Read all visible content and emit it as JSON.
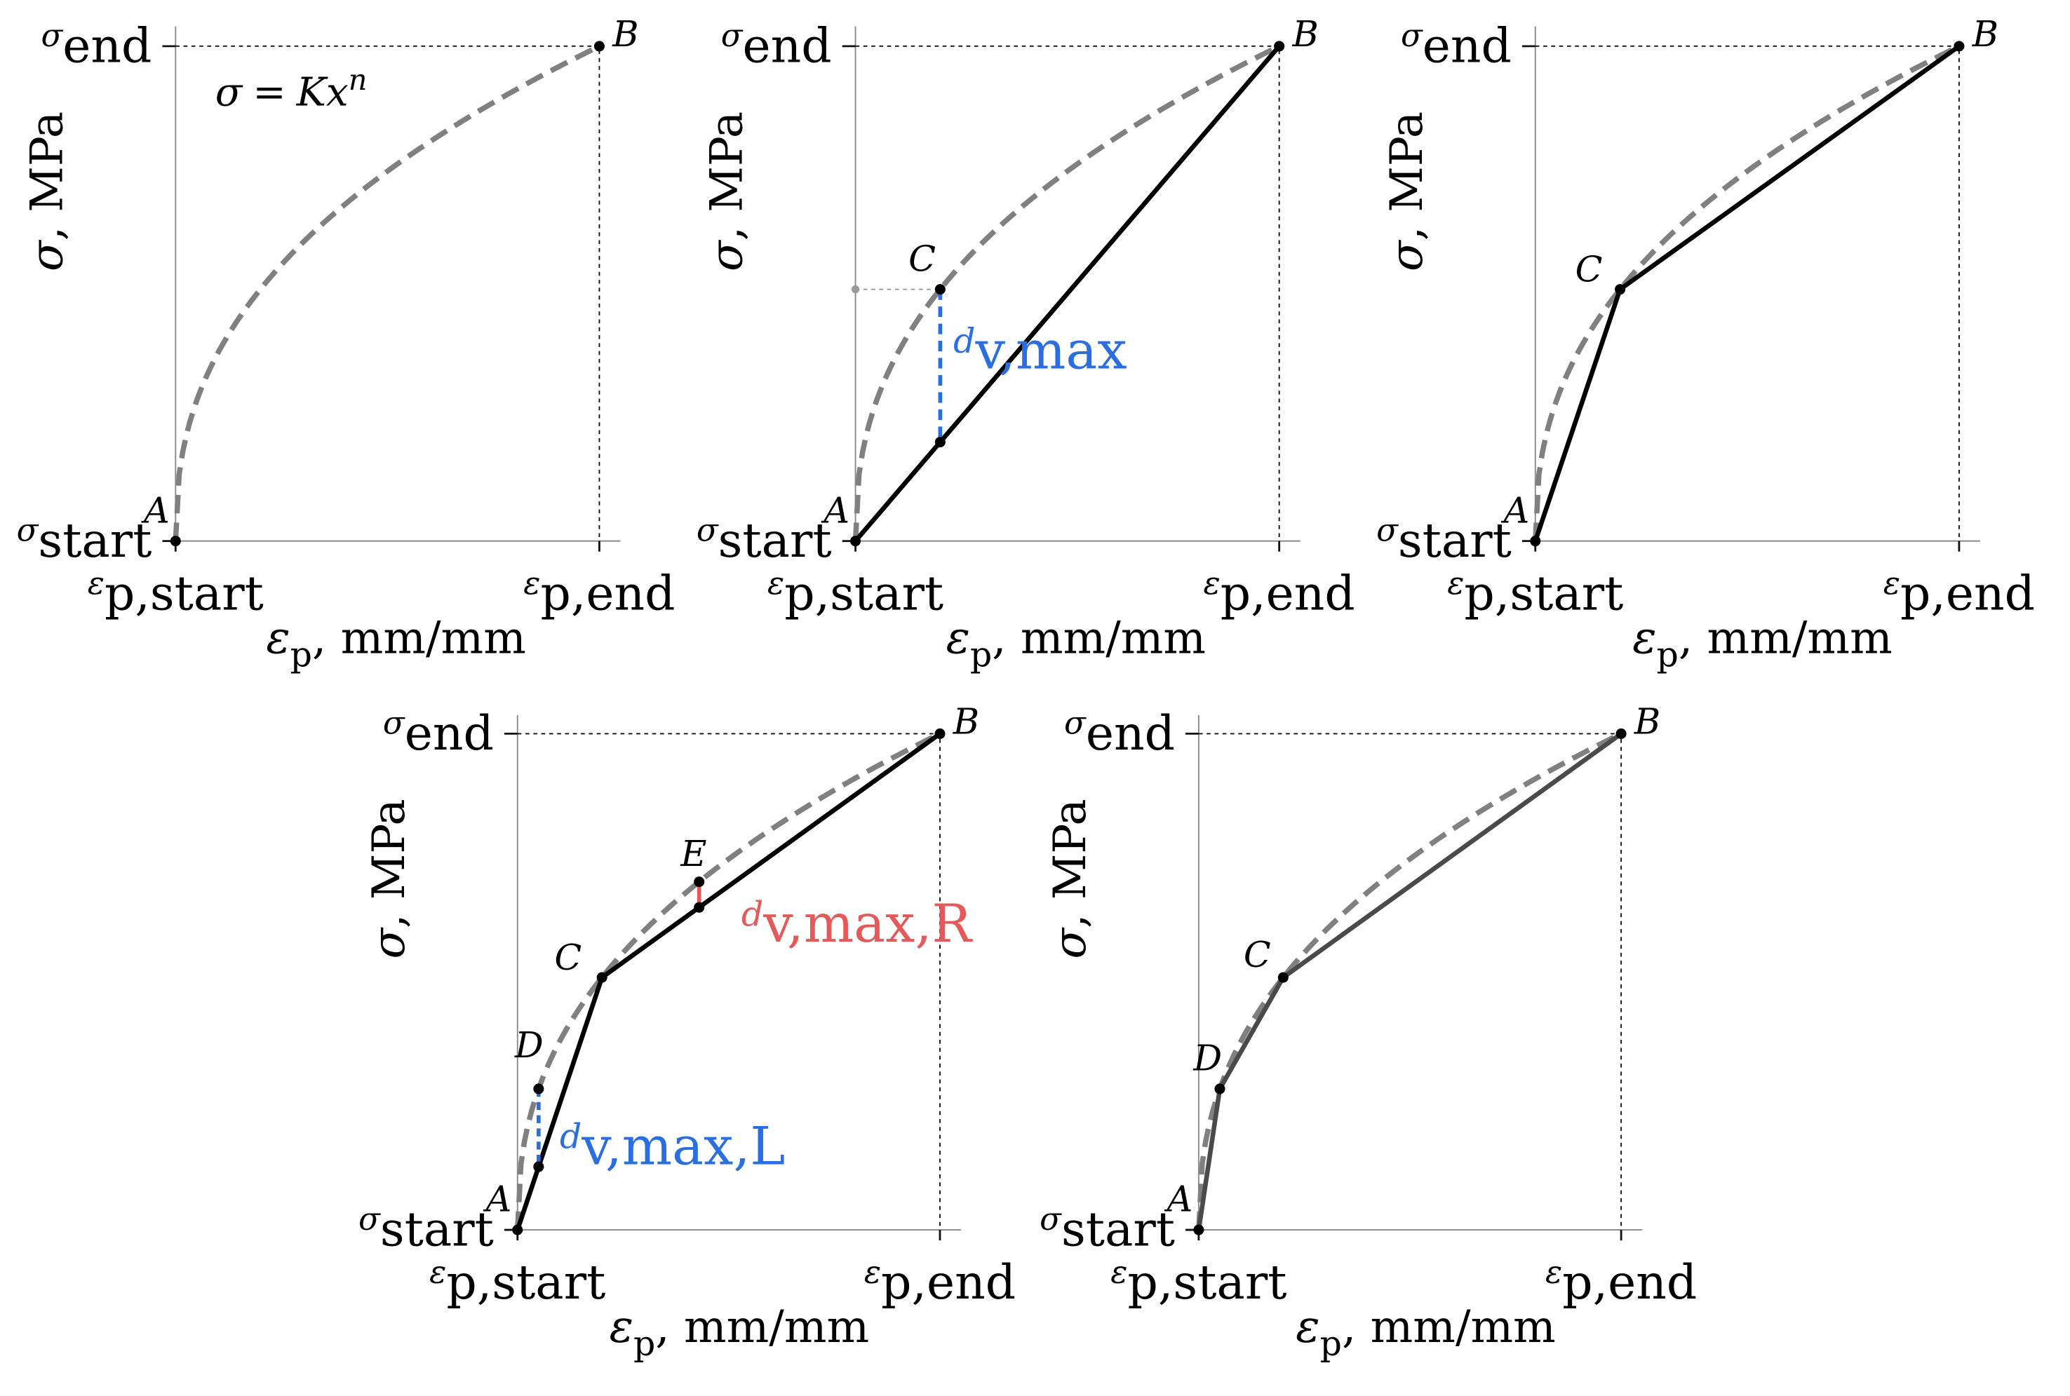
{
  "figure": {
    "equation": {
      "lhs": "σ",
      "eq": "=",
      "coef": "K",
      "var": "x",
      "exp": "n"
    },
    "axes": {
      "y_symbol": "σ",
      "y_unit": ", MPa",
      "x_symbol": "ε",
      "x_sub": "p",
      "x_unit": ", mm/mm",
      "sigma_symbol": "σ",
      "sigma_start_sub": "start",
      "sigma_end_sub": "end",
      "eps_symbol": "ε",
      "eps_start_sub": "p,start",
      "eps_end_sub": "p,end"
    },
    "points": {
      "A": "A",
      "B": "B",
      "C": "C",
      "D": "D",
      "E": "E"
    },
    "annotations": {
      "d_symbol": "d",
      "dvmax_sub": "v,max",
      "dvmaxL_sub": "v,max,L",
      "dvmaxR_sub": "v,max,R"
    },
    "colors": {
      "curve": "#808080",
      "polyline": "#000000",
      "blue": "#2a6ee0",
      "red": "#e45a5a",
      "axis": "#8a8a8a"
    }
  },
  "chart_data": [
    {
      "type": "line",
      "panel": "a",
      "curve": "σ = Kx^n (dashed)",
      "polyline_points": [],
      "x": [
        "ε_p,start",
        "ε_p,end"
      ],
      "y": [
        "σ_start",
        "σ_end"
      ]
    },
    {
      "type": "line",
      "panel": "b",
      "curve": "σ = Kx^n (dashed)",
      "polyline_points": [
        "A",
        "B"
      ],
      "max_deviation": {
        "point": "C",
        "label": "d_v,max"
      }
    },
    {
      "type": "line",
      "panel": "c",
      "curve": "σ = Kx^n (dashed)",
      "polyline_points": [
        "A",
        "C",
        "B"
      ]
    },
    {
      "type": "line",
      "panel": "d",
      "curve": "σ = Kx^n (dashed)",
      "polyline_points": [
        "A",
        "C",
        "B"
      ],
      "max_deviation_left": {
        "point": "D",
        "label": "d_v,max,L"
      },
      "max_deviation_right": {
        "point": "E",
        "label": "d_v,max,R"
      }
    },
    {
      "type": "line",
      "panel": "e",
      "curve": "σ = Kx^n (dashed)",
      "polyline_points": [
        "A",
        "D",
        "C",
        "B"
      ]
    }
  ]
}
